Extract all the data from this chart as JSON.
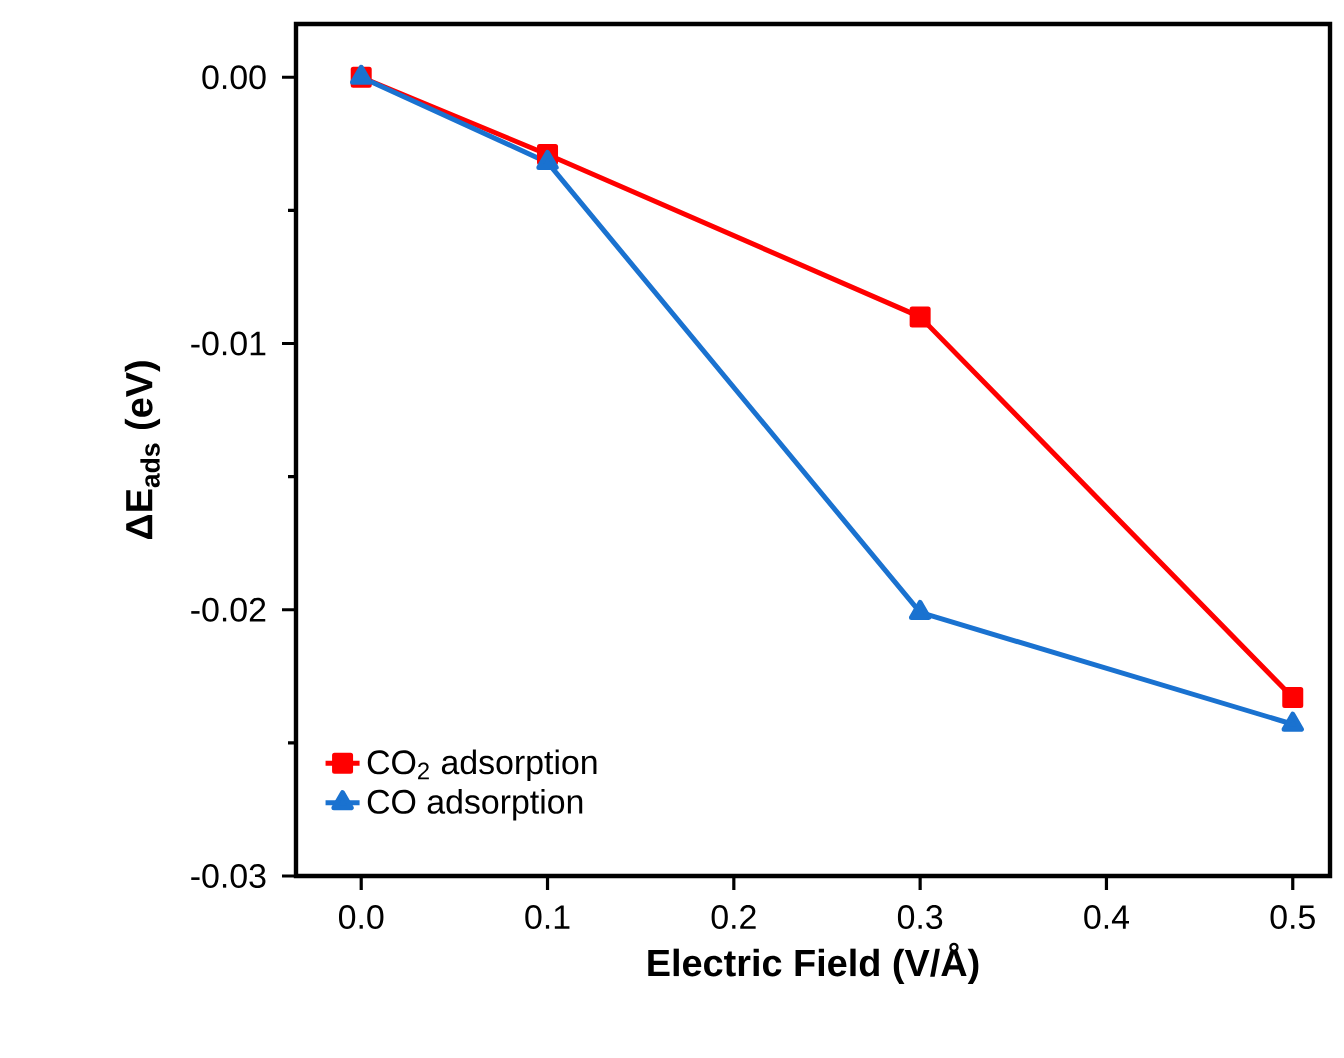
{
  "chart_data": {
    "type": "line",
    "xlabel": "Electric Field (V/Å)",
    "ylabel": "ΔE$_{ads}$ (eV)",
    "x": [
      0.0,
      0.1,
      0.3,
      0.5
    ],
    "series": [
      {
        "name": "CO$_{2}$ adsorption",
        "color": "#ff0000",
        "marker": "square",
        "values": [
          0.0,
          -0.0029,
          -0.009,
          -0.0233
        ]
      },
      {
        "name": "CO adsorption",
        "color": "#1a72d0",
        "marker": "triangle",
        "values": [
          0.0,
          -0.0032,
          -0.0201,
          -0.0243
        ]
      }
    ],
    "xlim": [
      -0.035,
      0.52
    ],
    "ylim": [
      -0.03,
      0.002
    ],
    "xticks": [
      {
        "value": 0.0,
        "label": "0.0"
      },
      {
        "value": 0.1,
        "label": "0.1"
      },
      {
        "value": 0.2,
        "label": "0.2"
      },
      {
        "value": 0.3,
        "label": "0.3"
      },
      {
        "value": 0.4,
        "label": "0.4"
      },
      {
        "value": 0.5,
        "label": "0.5"
      }
    ],
    "yticks": [
      {
        "value": 0.0,
        "label": "0.00"
      },
      {
        "value": -0.01,
        "label": "-0.01"
      },
      {
        "value": -0.02,
        "label": "-0.02"
      },
      {
        "value": -0.03,
        "label": "-0.03"
      }
    ],
    "legend": "bottom left",
    "line_style": "solid"
  }
}
